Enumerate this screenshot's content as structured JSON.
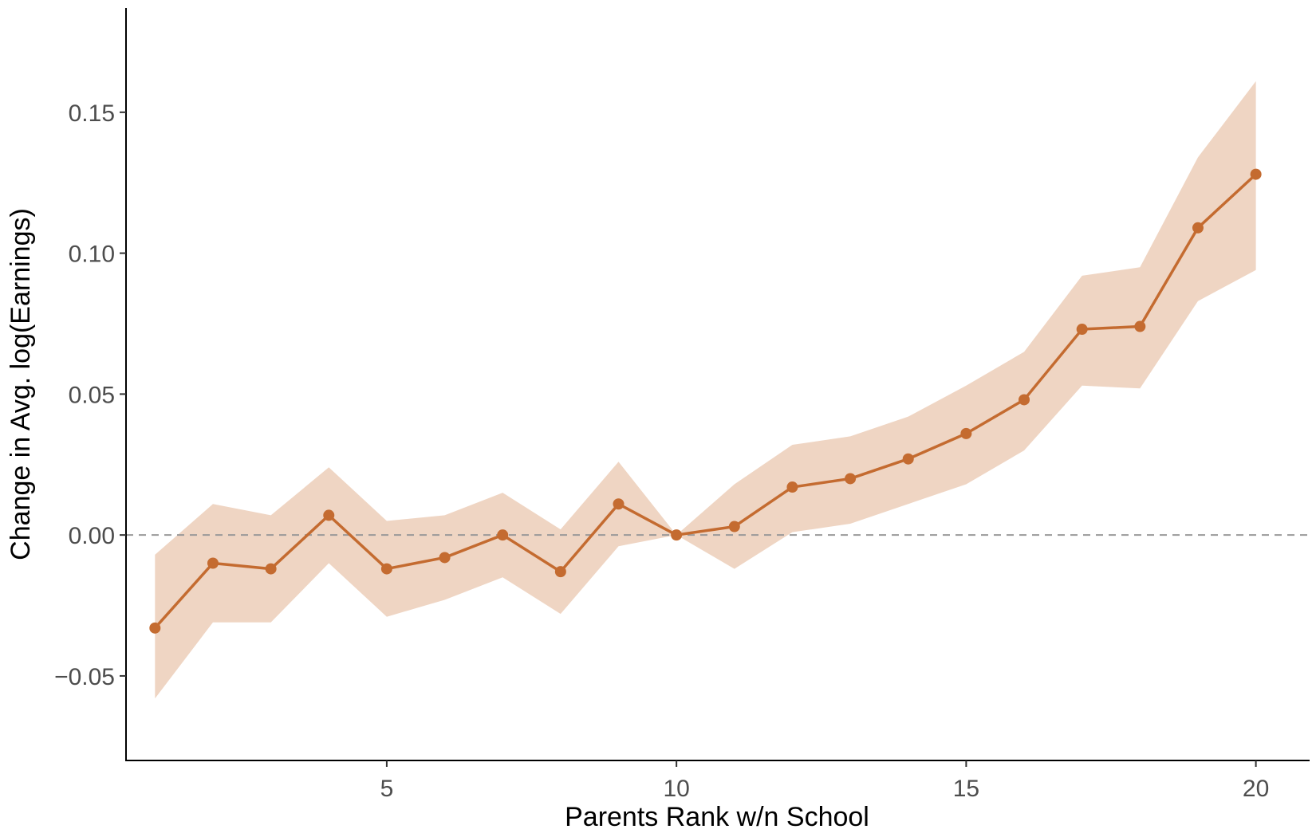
{
  "chart_data": {
    "type": "line",
    "title": "",
    "xlabel": "Parents Rank w/n School",
    "ylabel": "Change in Avg. log(Earnings)",
    "xlim": [
      0.5,
      20.9
    ],
    "ylim": [
      -0.08,
      0.187
    ],
    "x_ticks": [
      5,
      10,
      15,
      20
    ],
    "x_tick_labels": [
      "5",
      "10",
      "15",
      "20"
    ],
    "y_ticks": [
      -0.05,
      0.0,
      0.05,
      0.1,
      0.15
    ],
    "y_tick_labels": [
      "−0.05",
      "0.00",
      "0.05",
      "0.10",
      "0.15"
    ],
    "reference_line": {
      "y": 0,
      "style": "dashed",
      "color": "#999999"
    },
    "grid": false,
    "legend": "none",
    "colors": {
      "line": "#c46b30",
      "band": "#efd5c3"
    },
    "series": [
      {
        "x": [
          1,
          2,
          3,
          4,
          5,
          6,
          7,
          8,
          9,
          10,
          11,
          12,
          13,
          14,
          15,
          16,
          17,
          18,
          19,
          20
        ],
        "values": [
          -0.033,
          -0.01,
          -0.012,
          0.007,
          -0.012,
          -0.008,
          0.0,
          -0.013,
          0.011,
          0.0,
          0.003,
          0.017,
          0.02,
          0.027,
          0.036,
          0.048,
          0.073,
          0.074,
          0.109,
          0.128
        ],
        "lower": [
          -0.058,
          -0.031,
          -0.031,
          -0.01,
          -0.029,
          -0.023,
          -0.015,
          -0.028,
          -0.004,
          0.0,
          -0.012,
          0.001,
          0.004,
          0.011,
          0.018,
          0.03,
          0.053,
          0.052,
          0.083,
          0.094
        ],
        "upper": [
          -0.007,
          0.011,
          0.007,
          0.024,
          0.005,
          0.007,
          0.015,
          0.002,
          0.026,
          0.0,
          0.018,
          0.032,
          0.035,
          0.042,
          0.053,
          0.065,
          0.092,
          0.095,
          0.134,
          0.161
        ]
      }
    ]
  }
}
